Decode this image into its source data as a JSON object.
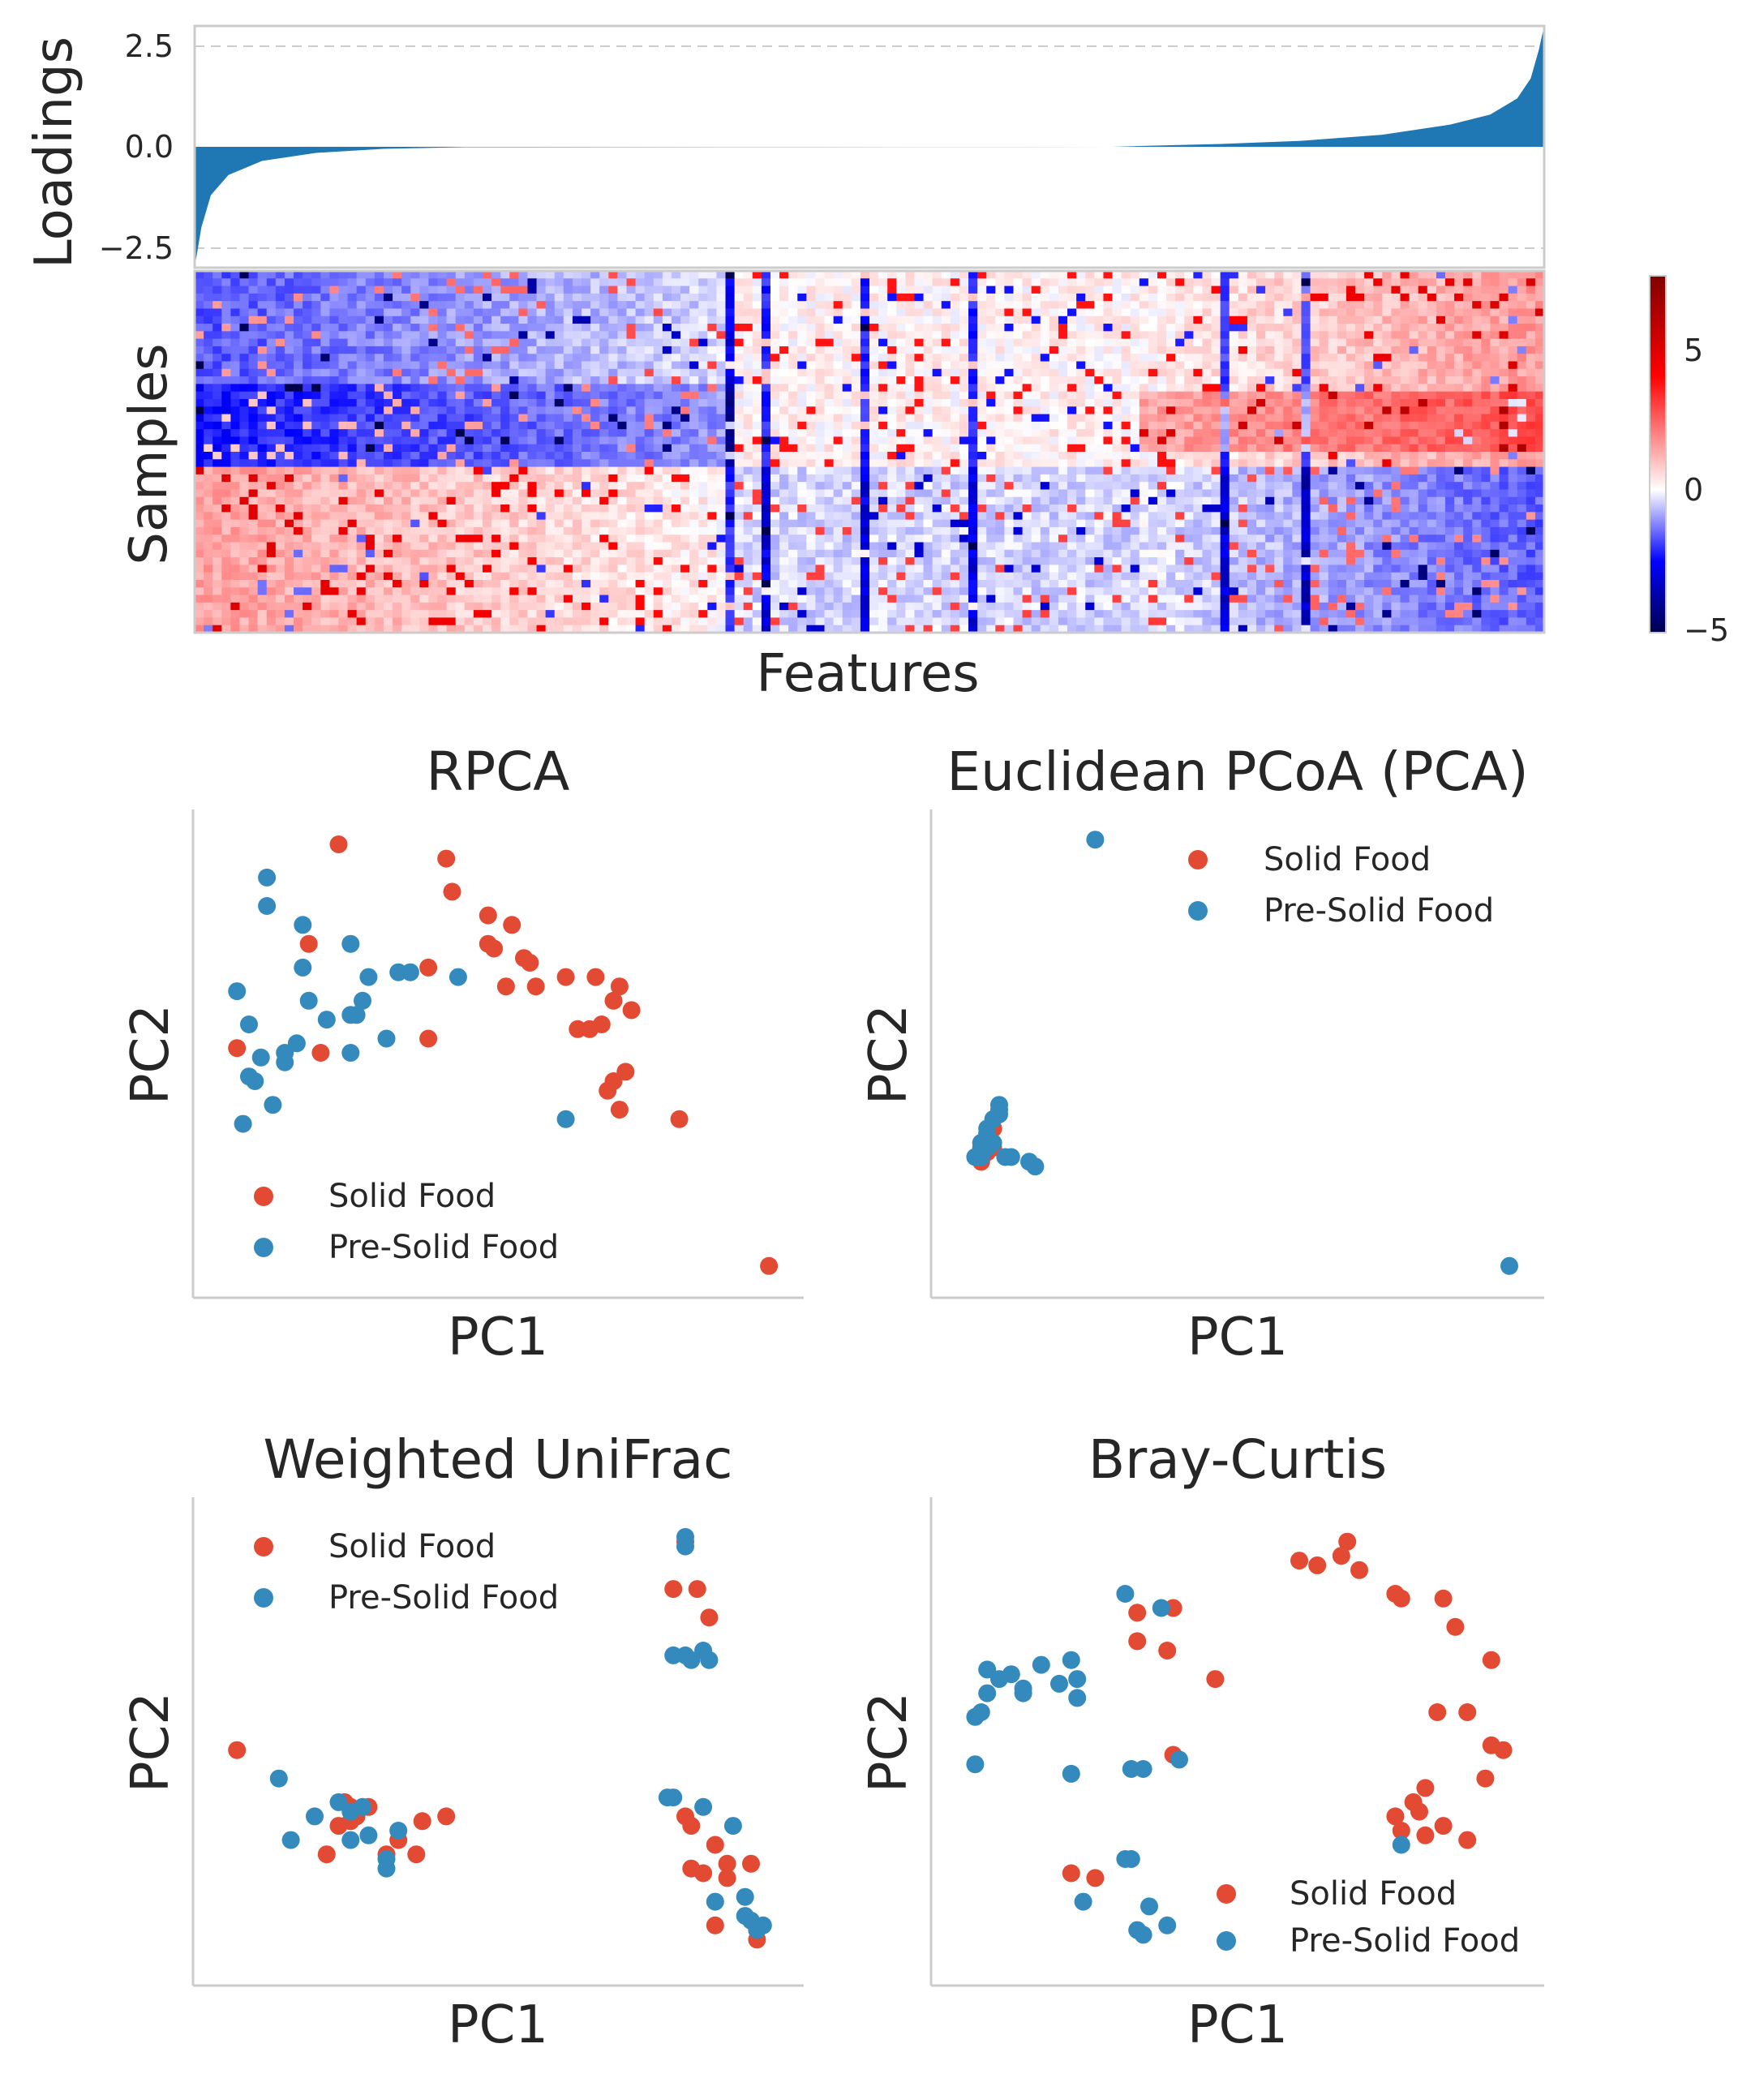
{
  "colors": {
    "solid": "#e24a33",
    "pre": "#348abd",
    "loadings": "#1f77b4",
    "grid": "#cccccc",
    "frame": "#cccccc"
  },
  "chart_data": [
    {
      "type": "area",
      "ylabel": "Loadings",
      "yticks": [
        "2.5",
        "0.0",
        "−2.5"
      ],
      "ytick_values": [
        2.5,
        0.0,
        -2.5
      ],
      "ylim": [
        -3.0,
        3.0
      ],
      "grid": "dashed horizontal",
      "profile": [
        [
          0.0,
          -3.0
        ],
        [
          0.005,
          -2.0
        ],
        [
          0.012,
          -1.2
        ],
        [
          0.025,
          -0.7
        ],
        [
          0.05,
          -0.35
        ],
        [
          0.09,
          -0.15
        ],
        [
          0.14,
          -0.05
        ],
        [
          0.2,
          -0.01
        ],
        [
          0.68,
          0.0
        ],
        [
          0.7,
          0.02
        ],
        [
          0.76,
          0.07
        ],
        [
          0.82,
          0.15
        ],
        [
          0.88,
          0.3
        ],
        [
          0.93,
          0.55
        ],
        [
          0.96,
          0.8
        ],
        [
          0.98,
          1.2
        ],
        [
          0.99,
          1.7
        ],
        [
          0.996,
          2.4
        ],
        [
          1.0,
          3.0
        ]
      ]
    },
    {
      "type": "heatmap",
      "ylabel": "Samples",
      "xlabel": "Features",
      "colorbar_ticks": [
        "5",
        "0",
        "−5"
      ],
      "colorbar_values": [
        5,
        0,
        -5
      ],
      "vmin": -5,
      "vmax": 7.5,
      "n_rows": 48,
      "n_cols": 150
    },
    {
      "type": "scatter",
      "title": "RPCA",
      "xlabel": "PC1",
      "ylabel": "PC2",
      "legend_position": "lower-left",
      "series": [
        {
          "name": "Solid Food",
          "points": [
            [
              0.23,
              0.94
            ],
            [
              0.41,
              0.91
            ],
            [
              0.42,
              0.84
            ],
            [
              0.48,
              0.79
            ],
            [
              0.52,
              0.77
            ],
            [
              0.48,
              0.73
            ],
            [
              0.49,
              0.72
            ],
            [
              0.54,
              0.7
            ],
            [
              0.55,
              0.69
            ],
            [
              0.38,
              0.68
            ],
            [
              0.51,
              0.64
            ],
            [
              0.56,
              0.64
            ],
            [
              0.61,
              0.66
            ],
            [
              0.66,
              0.66
            ],
            [
              0.7,
              0.64
            ],
            [
              0.69,
              0.61
            ],
            [
              0.72,
              0.59
            ],
            [
              0.63,
              0.55
            ],
            [
              0.65,
              0.55
            ],
            [
              0.67,
              0.56
            ],
            [
              0.71,
              0.46
            ],
            [
              0.69,
              0.44
            ],
            [
              0.68,
              0.42
            ],
            [
              0.7,
              0.38
            ],
            [
              0.8,
              0.36
            ],
            [
              0.95,
              0.05
            ],
            [
              0.18,
              0.73
            ],
            [
              0.06,
              0.51
            ],
            [
              0.2,
              0.5
            ],
            [
              0.38,
              0.53
            ]
          ]
        },
        {
          "name": "Pre-Solid Food",
          "points": [
            [
              0.11,
              0.87
            ],
            [
              0.11,
              0.81
            ],
            [
              0.17,
              0.77
            ],
            [
              0.25,
              0.73
            ],
            [
              0.17,
              0.68
            ],
            [
              0.28,
              0.66
            ],
            [
              0.33,
              0.67
            ],
            [
              0.35,
              0.67
            ],
            [
              0.43,
              0.66
            ],
            [
              0.06,
              0.63
            ],
            [
              0.18,
              0.61
            ],
            [
              0.27,
              0.61
            ],
            [
              0.25,
              0.58
            ],
            [
              0.26,
              0.58
            ],
            [
              0.21,
              0.57
            ],
            [
              0.08,
              0.56
            ],
            [
              0.31,
              0.53
            ],
            [
              0.16,
              0.52
            ],
            [
              0.25,
              0.5
            ],
            [
              0.1,
              0.49
            ],
            [
              0.14,
              0.48
            ],
            [
              0.14,
              0.5
            ],
            [
              0.08,
              0.45
            ],
            [
              0.09,
              0.44
            ],
            [
              0.12,
              0.39
            ],
            [
              0.61,
              0.36
            ],
            [
              0.07,
              0.35
            ]
          ]
        }
      ]
    },
    {
      "type": "scatter",
      "title": "Euclidean PCoA (PCA)",
      "xlabel": "PC1",
      "ylabel": "PC2",
      "legend_position": "upper-right",
      "series": [
        {
          "name": "Solid Food",
          "points": [
            [
              0.07,
              0.3
            ],
            [
              0.07,
              0.29
            ],
            [
              0.08,
              0.29
            ],
            [
              0.08,
              0.3
            ],
            [
              0.07,
              0.31
            ],
            [
              0.08,
              0.32
            ],
            [
              0.08,
              0.33
            ],
            [
              0.09,
              0.34
            ],
            [
              0.07,
              0.27
            ],
            [
              0.09,
              0.3
            ]
          ]
        },
        {
          "name": "Pre-Solid Food",
          "points": [
            [
              0.26,
              0.95
            ],
            [
              0.95,
              0.05
            ],
            [
              0.1,
              0.39
            ],
            [
              0.1,
              0.38
            ],
            [
              0.09,
              0.36
            ],
            [
              0.1,
              0.37
            ],
            [
              0.08,
              0.34
            ],
            [
              0.08,
              0.33
            ],
            [
              0.08,
              0.32
            ],
            [
              0.07,
              0.31
            ],
            [
              0.07,
              0.3
            ],
            [
              0.07,
              0.29
            ],
            [
              0.06,
              0.28
            ],
            [
              0.11,
              0.28
            ],
            [
              0.12,
              0.28
            ],
            [
              0.15,
              0.27
            ],
            [
              0.16,
              0.26
            ],
            [
              0.07,
              0.28
            ],
            [
              0.08,
              0.3
            ],
            [
              0.09,
              0.31
            ]
          ]
        }
      ]
    },
    {
      "type": "scatter",
      "title": "Weighted UniFrac",
      "xlabel": "PC1",
      "ylabel": "PC2",
      "legend_position": "upper-left",
      "series": [
        {
          "name": "Solid Food",
          "points": [
            [
              0.06,
              0.48
            ],
            [
              0.24,
              0.37
            ],
            [
              0.25,
              0.36
            ],
            [
              0.26,
              0.34
            ],
            [
              0.28,
              0.36
            ],
            [
              0.23,
              0.32
            ],
            [
              0.25,
              0.33
            ],
            [
              0.37,
              0.33
            ],
            [
              0.41,
              0.34
            ],
            [
              0.33,
              0.29
            ],
            [
              0.31,
              0.26
            ],
            [
              0.36,
              0.26
            ],
            [
              0.21,
              0.26
            ],
            [
              0.81,
              0.92
            ],
            [
              0.79,
              0.82
            ],
            [
              0.83,
              0.82
            ],
            [
              0.85,
              0.76
            ],
            [
              0.81,
              0.34
            ],
            [
              0.82,
              0.32
            ],
            [
              0.86,
              0.28
            ],
            [
              0.82,
              0.23
            ],
            [
              0.84,
              0.22
            ],
            [
              0.88,
              0.24
            ],
            [
              0.88,
              0.21
            ],
            [
              0.92,
              0.24
            ],
            [
              0.86,
              0.11
            ],
            [
              0.93,
              0.08
            ]
          ]
        },
        {
          "name": "Pre-Solid Food",
          "points": [
            [
              0.13,
              0.42
            ],
            [
              0.23,
              0.37
            ],
            [
              0.27,
              0.36
            ],
            [
              0.25,
              0.35
            ],
            [
              0.19,
              0.34
            ],
            [
              0.33,
              0.31
            ],
            [
              0.28,
              0.3
            ],
            [
              0.25,
              0.29
            ],
            [
              0.15,
              0.29
            ],
            [
              0.31,
              0.25
            ],
            [
              0.31,
              0.23
            ],
            [
              0.81,
              0.93
            ],
            [
              0.81,
              0.91
            ],
            [
              0.79,
              0.68
            ],
            [
              0.81,
              0.68
            ],
            [
              0.84,
              0.69
            ],
            [
              0.85,
              0.67
            ],
            [
              0.82,
              0.67
            ],
            [
              0.78,
              0.38
            ],
            [
              0.79,
              0.38
            ],
            [
              0.84,
              0.36
            ],
            [
              0.89,
              0.32
            ],
            [
              0.86,
              0.16
            ],
            [
              0.91,
              0.17
            ],
            [
              0.91,
              0.13
            ],
            [
              0.92,
              0.12
            ],
            [
              0.93,
              0.1
            ],
            [
              0.94,
              0.11
            ]
          ]
        }
      ]
    },
    {
      "type": "scatter",
      "title": "Bray-Curtis",
      "xlabel": "PC1",
      "ylabel": "PC2",
      "legend_position": "lower-right",
      "series": [
        {
          "name": "Solid Food",
          "points": [
            [
              0.6,
              0.88
            ],
            [
              0.63,
              0.87
            ],
            [
              0.67,
              0.89
            ],
            [
              0.68,
              0.92
            ],
            [
              0.7,
              0.86
            ],
            [
              0.76,
              0.81
            ],
            [
              0.77,
              0.8
            ],
            [
              0.84,
              0.8
            ],
            [
              0.33,
              0.77
            ],
            [
              0.39,
              0.78
            ],
            [
              0.86,
              0.74
            ],
            [
              0.33,
              0.71
            ],
            [
              0.38,
              0.69
            ],
            [
              0.92,
              0.67
            ],
            [
              0.46,
              0.63
            ],
            [
              0.83,
              0.56
            ],
            [
              0.88,
              0.56
            ],
            [
              0.92,
              0.49
            ],
            [
              0.94,
              0.48
            ],
            [
              0.39,
              0.47
            ],
            [
              0.91,
              0.42
            ],
            [
              0.81,
              0.4
            ],
            [
              0.79,
              0.37
            ],
            [
              0.76,
              0.34
            ],
            [
              0.8,
              0.35
            ],
            [
              0.84,
              0.32
            ],
            [
              0.77,
              0.31
            ],
            [
              0.81,
              0.3
            ],
            [
              0.88,
              0.29
            ],
            [
              0.22,
              0.22
            ],
            [
              0.26,
              0.21
            ]
          ]
        },
        {
          "name": "Pre-Solid Food",
          "points": [
            [
              0.31,
              0.81
            ],
            [
              0.37,
              0.78
            ],
            [
              0.08,
              0.65
            ],
            [
              0.12,
              0.64
            ],
            [
              0.17,
              0.66
            ],
            [
              0.22,
              0.67
            ],
            [
              0.1,
              0.63
            ],
            [
              0.2,
              0.62
            ],
            [
              0.23,
              0.63
            ],
            [
              0.08,
              0.6
            ],
            [
              0.14,
              0.6
            ],
            [
              0.14,
              0.61
            ],
            [
              0.23,
              0.59
            ],
            [
              0.07,
              0.56
            ],
            [
              0.06,
              0.55
            ],
            [
              0.06,
              0.45
            ],
            [
              0.22,
              0.43
            ],
            [
              0.32,
              0.44
            ],
            [
              0.34,
              0.44
            ],
            [
              0.4,
              0.46
            ],
            [
              0.77,
              0.28
            ],
            [
              0.32,
              0.25
            ],
            [
              0.31,
              0.25
            ],
            [
              0.24,
              0.16
            ],
            [
              0.35,
              0.15
            ],
            [
              0.38,
              0.11
            ],
            [
              0.33,
              0.1
            ],
            [
              0.34,
              0.09
            ]
          ]
        }
      ]
    }
  ]
}
